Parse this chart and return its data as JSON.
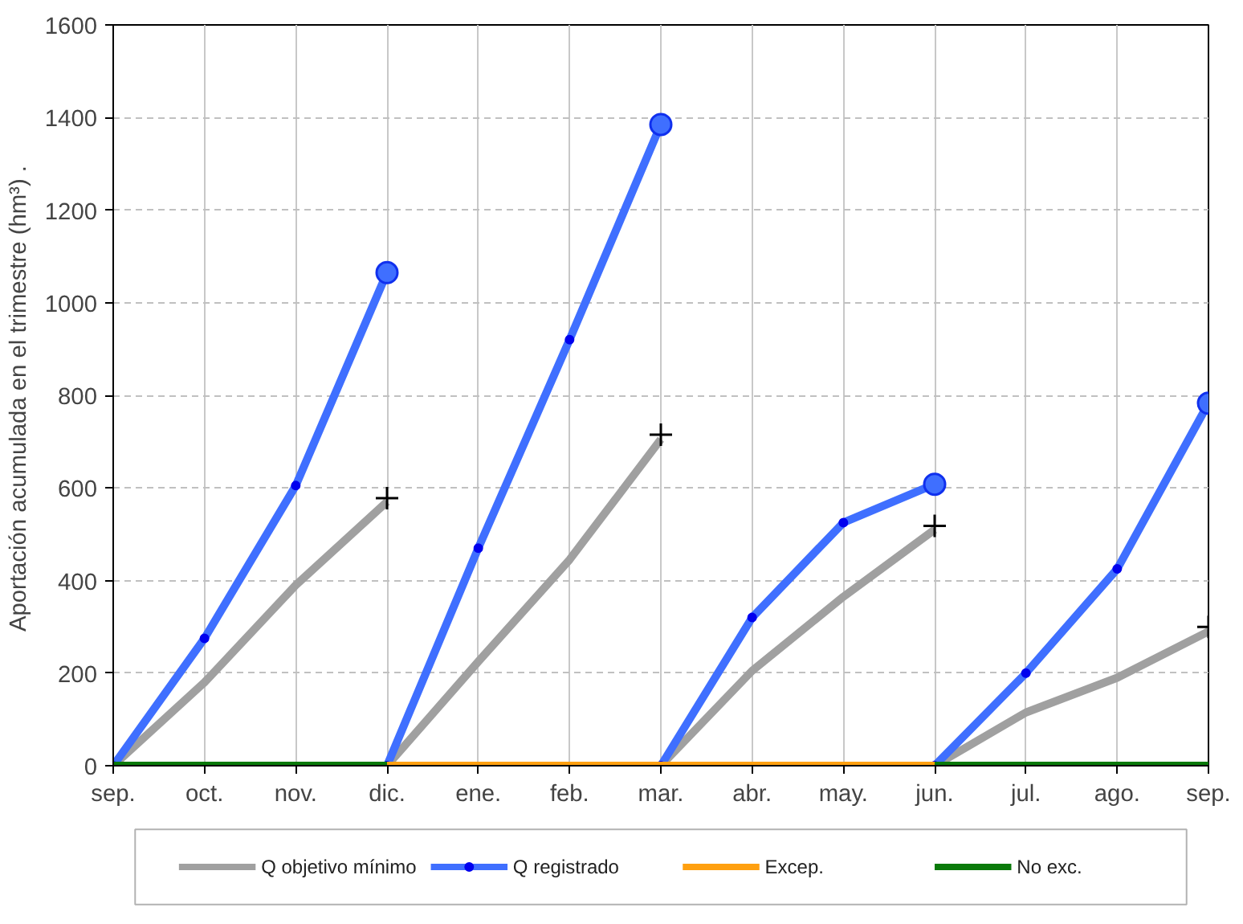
{
  "chart_data": {
    "type": "line",
    "ylabel": "Aportación acumulada en el trimestre (hm³)  .",
    "categories": [
      "sep.",
      "oct.",
      "nov.",
      "dic.",
      "ene.",
      "feb.",
      "mar.",
      "abr.",
      "may.",
      "jun.",
      "jul.",
      "ago.",
      "sep."
    ],
    "ylim": [
      0,
      1600
    ],
    "yticks": [
      0,
      200,
      400,
      600,
      800,
      1000,
      1200,
      1400,
      1600
    ],
    "grid": true,
    "legend": "bottom",
    "line_style": "solid",
    "series": [
      {
        "name": "Q objetivo mínimo",
        "color": "#a0a0a0",
        "marker": "none",
        "values": [
          0,
          180,
          390,
          570,
          null,
          null,
          null,
          null,
          null,
          null,
          null,
          null,
          null
        ]
      },
      {
        "color": "#a0a0a0",
        "marker": "none",
        "values": [
          null,
          null,
          null,
          0,
          225,
          445,
          705,
          null,
          null,
          null,
          null,
          null,
          null
        ]
      },
      {
        "color": "#a0a0a0",
        "marker": "none",
        "values": [
          null,
          null,
          null,
          null,
          null,
          null,
          0,
          205,
          365,
          510,
          null,
          null,
          null
        ]
      },
      {
        "color": "#a0a0a0",
        "marker": "none",
        "values": [
          null,
          null,
          null,
          null,
          null,
          null,
          null,
          null,
          null,
          0,
          115,
          190,
          290
        ]
      },
      {
        "type": "scatter",
        "color": "#000000",
        "marker": "cross",
        "values": [
          null,
          null,
          null,
          578,
          null,
          null,
          715,
          null,
          null,
          518,
          null,
          null,
          300
        ]
      },
      {
        "name": "Q registrado",
        "color": "#3f6fff",
        "marker": "circle",
        "values": [
          0,
          275,
          605,
          1065,
          null,
          null,
          null,
          null,
          null,
          null,
          null,
          null,
          null
        ]
      },
      {
        "color": "#3f6fff",
        "marker": "circle",
        "values": [
          null,
          null,
          null,
          0,
          470,
          920,
          1385,
          null,
          null,
          null,
          null,
          null,
          null
        ]
      },
      {
        "color": "#3f6fff",
        "marker": "circle",
        "values": [
          null,
          null,
          null,
          null,
          null,
          null,
          0,
          320,
          525,
          608,
          null,
          null,
          null
        ]
      },
      {
        "color": "#3f6fff",
        "marker": "circle",
        "values": [
          null,
          null,
          null,
          null,
          null,
          null,
          null,
          null,
          null,
          0,
          200,
          425,
          783
        ]
      },
      {
        "type": "scatter",
        "color": "#3f6fff",
        "marker": "circle",
        "values": [
          null,
          null,
          null,
          1065,
          null,
          null,
          1385,
          null,
          null,
          608,
          null,
          null,
          783
        ]
      },
      {
        "name": "Excep.",
        "color": "#ffa010",
        "marker": "none",
        "values": [
          null,
          null,
          null,
          0,
          0,
          0,
          0,
          0,
          0,
          0,
          null,
          null,
          null
        ]
      },
      {
        "name": "No exc.",
        "color": "#0a7a0a",
        "marker": "none",
        "values": [
          0,
          0,
          0,
          0,
          null,
          null,
          null,
          null,
          null,
          null,
          null,
          null,
          null
        ]
      },
      {
        "color": "#0a7a0a",
        "marker": "none",
        "values": [
          null,
          null,
          null,
          null,
          null,
          null,
          null,
          null,
          null,
          0,
          0,
          0,
          0
        ]
      }
    ]
  }
}
